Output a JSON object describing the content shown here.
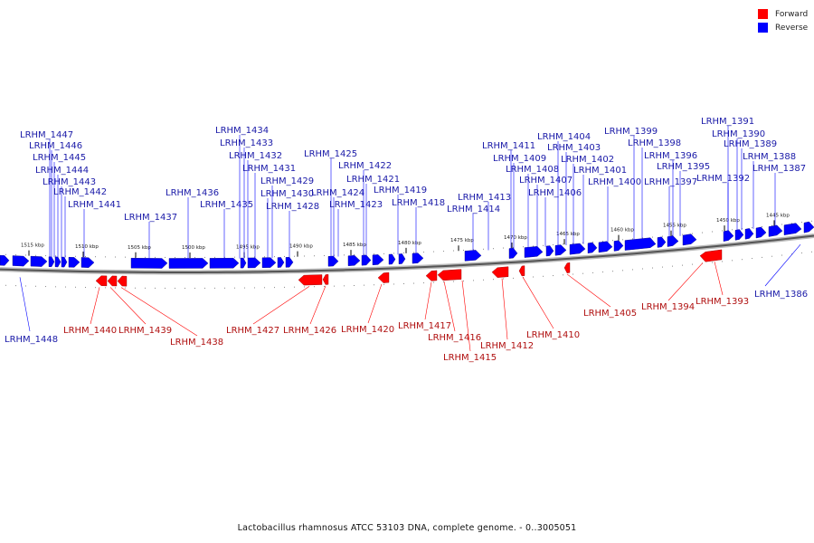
{
  "legend": {
    "forward_label": "Forward",
    "reverse_label": "Reverse",
    "forward_color": "#ff0000",
    "reverse_color": "#0000ff"
  },
  "caption": "Lactobacillus rhamnosus ATCC 53103 DNA, complete genome. - 0..3005051",
  "axis": {
    "ticks": [
      "1515 kbp",
      "1510 kbp",
      "1505 kbp",
      "1500 kbp",
      "1495 kbp",
      "1490 kbp",
      "1485 kbp",
      "1480 kbp",
      "1475 kbp",
      "1470 kbp",
      "1465 kbp",
      "1460 kbp",
      "1455 kbp",
      "1450 kbp",
      "1445 kbp"
    ]
  },
  "genes": {
    "reverse": [
      "LRHM_1447",
      "LRHM_1446",
      "LRHM_1445",
      "LRHM_1444",
      "LRHM_1443",
      "LRHM_1442",
      "LRHM_1441",
      "LRHM_1437",
      "LRHM_1436",
      "LRHM_1435",
      "LRHM_1434",
      "LRHM_1433",
      "LRHM_1432",
      "LRHM_1431",
      "LRHM_1430",
      "LRHM_1429",
      "LRHM_1428",
      "LRHM_1425",
      "LRHM_1424",
      "LRHM_1423",
      "LRHM_1422",
      "LRHM_1421",
      "LRHM_1419",
      "LRHM_1418",
      "LRHM_1414",
      "LRHM_1413",
      "LRHM_1411",
      "LRHM_1409",
      "LRHM_1408",
      "LRHM_1407",
      "LRHM_1406",
      "LRHM_1404",
      "LRHM_1403",
      "LRHM_1402",
      "LRHM_1401",
      "LRHM_1400",
      "LRHM_1399",
      "LRHM_1398",
      "LRHM_1397",
      "LRHM_1396",
      "LRHM_1395",
      "LRHM_1392",
      "LRHM_1391",
      "LRHM_1390",
      "LRHM_1389",
      "LRHM_1388",
      "LRHM_1387",
      "LRHM_1386",
      "LRHM_1448"
    ],
    "forward": [
      "LRHM_1440",
      "LRHM_1439",
      "LRHM_1438",
      "LRHM_1427",
      "LRHM_1426",
      "LRHM_1420",
      "LRHM_1417",
      "LRHM_1416",
      "LRHM_1415",
      "LRHM_1412",
      "LRHM_1410",
      "LRHM_1405",
      "LRHM_1394",
      "LRHM_1393"
    ]
  }
}
